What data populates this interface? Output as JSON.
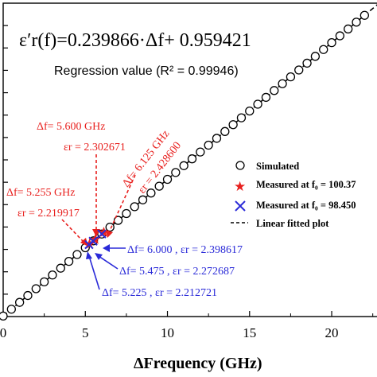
{
  "chart_data": {
    "type": "scatter",
    "equation": "ε′r(f)=0.239866·Δf+ 0.959421",
    "regression_text": "Regression value (R² = 0.99946)",
    "xlabel": "ΔFrequency (GHz)",
    "xlim": [
      0,
      23
    ],
    "ylim": [
      0.95,
      6.45
    ],
    "xticks": [
      "0",
      "5",
      "10",
      "15",
      "20"
    ],
    "xtick_values": [
      0,
      5,
      10,
      15,
      20
    ],
    "yticks_count": 14,
    "grid": false,
    "legend_position": "center-right",
    "legend": [
      {
        "label": "Simulated",
        "marker": "circle"
      },
      {
        "label": "Measured at f₀ = 100.37",
        "marker": "star",
        "color": "#e8201e"
      },
      {
        "label": "Measured at f₀ = 98.450",
        "marker": "x",
        "color": "#2a2ad8"
      },
      {
        "label": "Linear fitted plot",
        "marker": "dashed-line"
      }
    ],
    "fit": {
      "slope": 0.239866,
      "intercept": 0.959421
    },
    "series": [
      {
        "name": "Simulated",
        "x": [
          0,
          0.5,
          1,
          1.5,
          2,
          2.5,
          3,
          3.5,
          4,
          4.5,
          5,
          5.5,
          6,
          6.5,
          7,
          7.5,
          8,
          8.5,
          9,
          9.5,
          10,
          10.5,
          11,
          11.5,
          12,
          12.5,
          13,
          13.5,
          14,
          14.5,
          15,
          15.5,
          16,
          16.5,
          17,
          17.5,
          18,
          18.5,
          19,
          19.5,
          20,
          20.5,
          21,
          21.5,
          22
        ],
        "y": [
          0.959,
          1.079,
          1.199,
          1.319,
          1.439,
          1.559,
          1.679,
          1.799,
          1.918,
          2.039,
          2.158,
          2.279,
          2.398,
          2.519,
          2.638,
          2.758,
          2.878,
          2.998,
          3.118,
          3.238,
          3.358,
          3.478,
          3.598,
          3.718,
          3.838,
          3.958,
          4.078,
          4.198,
          4.318,
          4.438,
          4.557,
          4.677,
          4.797,
          4.917,
          5.037,
          5.157,
          5.277,
          5.397,
          5.517,
          5.637,
          5.757,
          5.877,
          5.997,
          6.117,
          6.237
        ]
      },
      {
        "name": "Measured at f₀ = 100.37",
        "x": [
          5.255,
          5.6,
          6.125
        ],
        "y": [
          2.219917,
          2.302671,
          2.4286
        ]
      },
      {
        "name": "Measured at f₀ = 98.450",
        "x": [
          5.225,
          5.475,
          6.0
        ],
        "y": [
          2.212721,
          2.272687,
          2.398617
        ]
      }
    ],
    "annotations_red": [
      {
        "f": "Δf= 5.600 GHz",
        "e": "εr = 2.302671"
      },
      {
        "f": "Δf= 6.125 GHz",
        "e": "εr = 2.428600"
      },
      {
        "f": "Δf= 5.255 GHz",
        "e": "εr = 2.219917"
      }
    ],
    "annotations_blue": [
      "Δf= 6.000 , εr = 2.398617",
      "Δf= 5.475 , εr = 2.272687",
      "Δf= 5.225 , εr = 2.212721"
    ]
  }
}
